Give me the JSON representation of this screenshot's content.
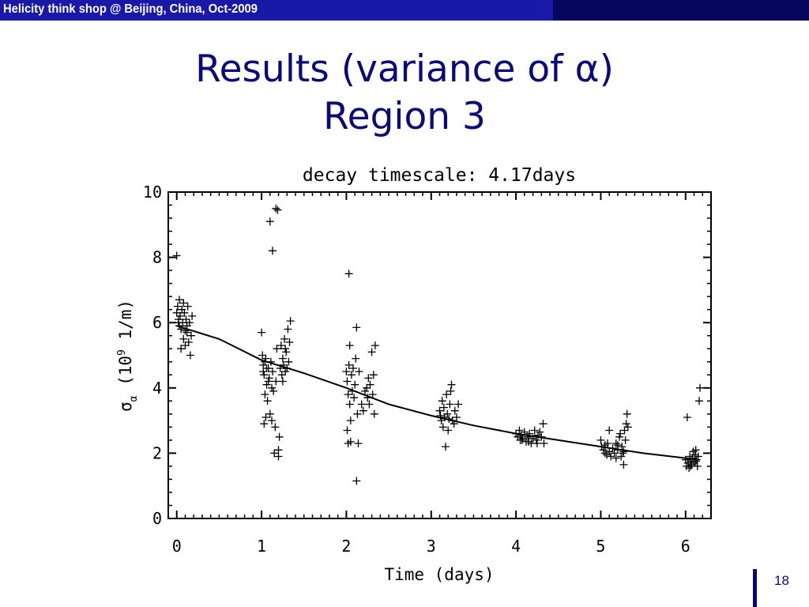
{
  "header": {
    "text": "Helicity think shop @ Beijing, China,  Oct-2009",
    "color_left": "#1919a8",
    "color_right": "#06065e"
  },
  "slide": {
    "title_line1": "Results (variance of α)",
    "title_line2": "Region 3",
    "page_number": "18"
  },
  "chart_data": {
    "type": "scatter",
    "title": "decay timescale: 4.17days",
    "xlabel": "Time (days)",
    "ylabel": "σα (10⁹ 1/m)",
    "xlim": [
      -0.1,
      6.3
    ],
    "ylim": [
      0,
      10
    ],
    "xticks": [
      0,
      1,
      2,
      3,
      4,
      5,
      6
    ],
    "yticks": [
      0,
      2,
      4,
      6,
      8,
      10
    ],
    "grid": false,
    "series": [
      {
        "marker": "+",
        "points": [
          [
            0.0,
            8.05
          ],
          [
            0.0,
            6.3
          ],
          [
            0.01,
            6.5
          ],
          [
            0.02,
            6.0
          ],
          [
            0.03,
            6.7
          ],
          [
            0.04,
            6.2
          ],
          [
            0.05,
            5.8
          ],
          [
            0.06,
            6.4
          ],
          [
            0.07,
            6.0
          ],
          [
            0.08,
            5.5
          ],
          [
            0.09,
            6.3
          ],
          [
            0.1,
            5.3
          ],
          [
            0.11,
            6.1
          ],
          [
            0.12,
            5.7
          ],
          [
            0.13,
            6.5
          ],
          [
            0.14,
            5.4
          ],
          [
            0.15,
            6.0
          ],
          [
            0.16,
            5.0
          ],
          [
            0.17,
            5.6
          ],
          [
            0.18,
            6.2
          ],
          [
            0.05,
            5.2
          ],
          [
            0.03,
            5.9
          ],
          [
            0.08,
            6.6
          ],
          [
            0.12,
            5.9
          ],
          [
            0.02,
            6.1
          ],
          [
            0.1,
            5.75
          ],
          [
            1.0,
            5.7
          ],
          [
            1.01,
            5.0
          ],
          [
            1.02,
            4.7
          ],
          [
            1.03,
            4.4
          ],
          [
            1.04,
            3.8
          ],
          [
            1.05,
            4.9
          ],
          [
            1.06,
            4.1
          ],
          [
            1.07,
            3.6
          ],
          [
            1.05,
            3.1
          ],
          [
            1.03,
            2.9
          ],
          [
            1.08,
            4.6
          ],
          [
            1.09,
            4.3
          ],
          [
            1.1,
            3.2
          ],
          [
            1.11,
            4.8
          ],
          [
            1.12,
            3.0
          ],
          [
            1.13,
            4.5
          ],
          [
            1.14,
            3.9
          ],
          [
            1.15,
            2.0
          ],
          [
            1.16,
            2.8
          ],
          [
            1.17,
            4.2
          ],
          [
            1.18,
            5.2
          ],
          [
            1.2,
            1.9
          ],
          [
            1.2,
            2.1
          ],
          [
            1.21,
            2.5
          ],
          [
            1.22,
            4.6
          ],
          [
            1.23,
            5.3
          ],
          [
            1.24,
            4.4
          ],
          [
            1.25,
            4.9
          ],
          [
            1.26,
            4.7
          ],
          [
            1.27,
            5.5
          ],
          [
            1.28,
            4.5
          ],
          [
            1.29,
            5.1
          ],
          [
            1.3,
            4.6
          ],
          [
            1.31,
            5.8
          ],
          [
            1.32,
            4.8
          ],
          [
            1.33,
            5.4
          ],
          [
            1.34,
            6.05
          ],
          [
            1.02,
            4.5
          ],
          [
            1.04,
            4.8
          ],
          [
            1.06,
            4.6
          ],
          [
            1.08,
            4.2
          ],
          [
            1.1,
            9.1
          ],
          [
            1.13,
            8.2
          ],
          [
            1.17,
            9.5
          ],
          [
            1.19,
            9.45
          ],
          [
            1.12,
            4.0
          ],
          [
            1.25,
            4.2
          ],
          [
            1.28,
            5.2
          ],
          [
            2.0,
            4.5
          ],
          [
            2.01,
            4.2
          ],
          [
            2.02,
            3.8
          ],
          [
            2.03,
            4.7
          ],
          [
            2.04,
            3.5
          ],
          [
            2.05,
            3.0
          ],
          [
            2.01,
            2.7
          ],
          [
            2.02,
            2.3
          ],
          [
            2.05,
            2.35
          ],
          [
            2.03,
            7.5
          ],
          [
            2.04,
            5.3
          ],
          [
            2.06,
            4.4
          ],
          [
            2.07,
            3.9
          ],
          [
            2.08,
            4.6
          ],
          [
            2.1,
            4.1
          ],
          [
            2.11,
            4.9
          ],
          [
            2.12,
            5.85
          ],
          [
            2.12,
            1.15
          ],
          [
            2.13,
            3.2
          ],
          [
            2.14,
            2.3
          ],
          [
            2.15,
            4.5
          ],
          [
            2.2,
            3.3
          ],
          [
            2.22,
            3.9
          ],
          [
            2.24,
            4.0
          ],
          [
            2.25,
            3.7
          ],
          [
            2.26,
            4.3
          ],
          [
            2.27,
            3.5
          ],
          [
            2.28,
            4.1
          ],
          [
            2.3,
            5.1
          ],
          [
            2.31,
            3.8
          ],
          [
            2.32,
            4.4
          ],
          [
            2.33,
            3.2
          ],
          [
            2.34,
            5.3
          ],
          [
            2.09,
            3.7
          ],
          [
            2.18,
            3.5
          ],
          [
            3.1,
            3.3
          ],
          [
            3.12,
            3.0
          ],
          [
            3.13,
            3.6
          ],
          [
            3.14,
            2.8
          ],
          [
            3.15,
            3.4
          ],
          [
            3.16,
            3.1
          ],
          [
            3.17,
            2.2
          ],
          [
            3.18,
            3.8
          ],
          [
            3.19,
            3.2
          ],
          [
            3.2,
            2.7
          ],
          [
            3.22,
            3.5
          ],
          [
            3.23,
            3.9
          ],
          [
            3.24,
            4.1
          ],
          [
            3.25,
            3.0
          ],
          [
            3.27,
            2.9
          ],
          [
            3.28,
            3.3
          ],
          [
            3.3,
            3.1
          ],
          [
            3.32,
            3.5
          ],
          [
            3.11,
            3.15
          ],
          [
            3.21,
            3.05
          ],
          [
            4.0,
            2.6
          ],
          [
            4.02,
            2.5
          ],
          [
            4.04,
            2.7
          ],
          [
            4.05,
            2.4
          ],
          [
            4.06,
            2.55
          ],
          [
            4.08,
            2.45
          ],
          [
            4.1,
            2.65
          ],
          [
            4.12,
            2.35
          ],
          [
            4.14,
            2.5
          ],
          [
            4.16,
            2.6
          ],
          [
            4.18,
            2.3
          ],
          [
            4.2,
            2.45
          ],
          [
            4.22,
            2.7
          ],
          [
            4.24,
            2.4
          ],
          [
            4.26,
            2.55
          ],
          [
            4.28,
            2.65
          ],
          [
            4.3,
            2.5
          ],
          [
            4.32,
            2.9
          ],
          [
            4.33,
            2.3
          ],
          [
            4.07,
            2.4
          ],
          [
            4.15,
            2.35
          ],
          [
            4.25,
            2.3
          ],
          [
            5.0,
            2.4
          ],
          [
            5.01,
            2.2
          ],
          [
            5.03,
            2.1
          ],
          [
            5.05,
            2.0
          ],
          [
            5.07,
            1.95
          ],
          [
            5.08,
            2.3
          ],
          [
            5.1,
            2.05
          ],
          [
            5.12,
            1.9
          ],
          [
            5.14,
            2.15
          ],
          [
            5.16,
            2.0
          ],
          [
            5.18,
            1.85
          ],
          [
            5.2,
            2.1
          ],
          [
            5.22,
            2.5
          ],
          [
            5.23,
            2.6
          ],
          [
            5.24,
            1.9
          ],
          [
            5.25,
            2.2
          ],
          [
            5.26,
            2.0
          ],
          [
            5.27,
            2.05
          ],
          [
            5.28,
            2.7
          ],
          [
            5.29,
            2.4
          ],
          [
            5.3,
            2.9
          ],
          [
            5.31,
            3.2
          ],
          [
            5.32,
            2.8
          ],
          [
            5.1,
            2.7
          ],
          [
            5.05,
            2.25
          ],
          [
            5.18,
            2.3
          ],
          [
            5.2,
            2.25
          ],
          [
            5.27,
            1.65
          ],
          [
            6.0,
            1.8
          ],
          [
            6.01,
            1.6
          ],
          [
            6.02,
            3.1
          ],
          [
            6.03,
            1.7
          ],
          [
            6.04,
            1.55
          ],
          [
            6.05,
            1.9
          ],
          [
            6.06,
            1.75
          ],
          [
            6.07,
            1.65
          ],
          [
            6.08,
            1.85
          ],
          [
            6.09,
            2.05
          ],
          [
            6.1,
            1.7
          ],
          [
            6.11,
            1.95
          ],
          [
            6.12,
            2.1
          ],
          [
            6.13,
            1.8
          ],
          [
            6.14,
            1.6
          ],
          [
            6.15,
            1.9
          ],
          [
            6.17,
            4.0
          ],
          [
            6.16,
            3.6
          ],
          [
            6.06,
            1.6
          ],
          [
            6.12,
            1.75
          ]
        ]
      }
    ],
    "fit": {
      "type": "exponential",
      "x": [
        0,
        0.5,
        1,
        1.5,
        2,
        2.5,
        3,
        3.5,
        4,
        4.5,
        5,
        5.5,
        6,
        6.15
      ],
      "y": [
        5.9,
        5.5,
        4.85,
        4.45,
        4.0,
        3.5,
        3.15,
        2.85,
        2.6,
        2.4,
        2.2,
        2.0,
        1.85,
        1.8
      ]
    }
  }
}
